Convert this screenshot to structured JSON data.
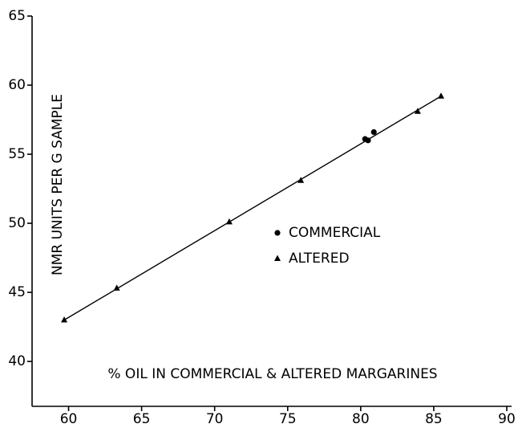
{
  "chart_data": {
    "type": "scatter",
    "x_label": "% OIL IN COMMERCIAL & ALTERED MARGARINES",
    "y_label": "NMR UNITS PER G SAMPLE",
    "xlim": [
      57.5,
      90
    ],
    "xticks": [
      60,
      65,
      70,
      75,
      80,
      85,
      90
    ],
    "ylim": [
      36.75,
      65
    ],
    "yticks": [
      40,
      45,
      50,
      55,
      60,
      65
    ],
    "series": [
      {
        "name": "COMMERCIAL",
        "marker": "circle",
        "color": "#000000",
        "x": [
          80.3,
          80.5,
          80.9
        ],
        "values": [
          56.1,
          56.0,
          56.6
        ]
      },
      {
        "name": "ALTERED",
        "marker": "triangle",
        "color": "#000000",
        "x": [
          59.7,
          63.3,
          71.0,
          75.9,
          83.9,
          85.5
        ],
        "values": [
          43.0,
          45.3,
          50.1,
          53.1,
          58.1,
          59.2
        ]
      }
    ],
    "fit_line": {
      "x": [
        59.7,
        85.5
      ],
      "values": [
        43.0,
        59.2
      ],
      "color": "#000000"
    }
  }
}
